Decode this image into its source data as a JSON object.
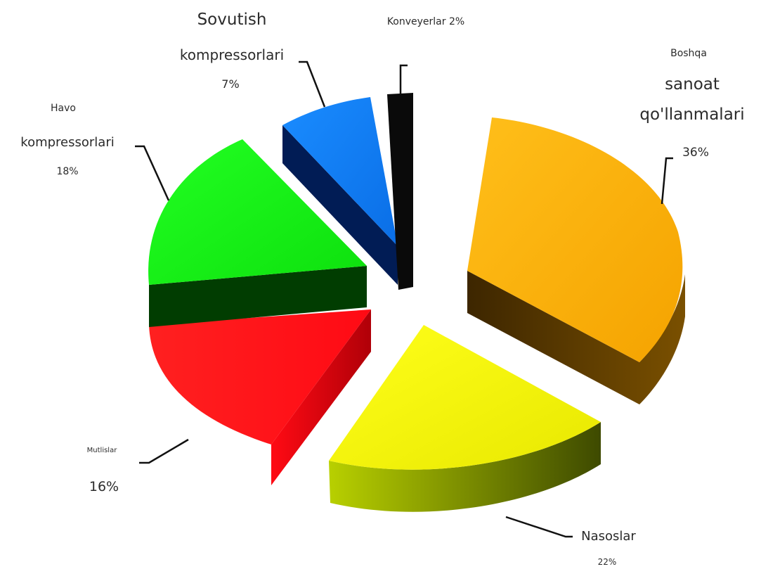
{
  "chart_data": {
    "type": "pie",
    "title": "",
    "style": "3d-exploded",
    "slices": [
      {
        "label_lines": [
          "Boshqa",
          "sanoat",
          "qo'llanmalari",
          "36%"
        ],
        "value": 36,
        "color": "#ffb400",
        "side_color": "#6b4300"
      },
      {
        "label_lines": [
          "Nasoslar",
          "22%"
        ],
        "value": 22,
        "color": "#f2f20d",
        "side_color": "#7a8c00"
      },
      {
        "label_lines": [
          "Mutlislar",
          "16%"
        ],
        "value": 16,
        "color": "#ff0a14",
        "side_color": "#c8000a"
      },
      {
        "label_lines": [
          "Havo",
          "kompressorlari",
          "18%"
        ],
        "value": 18,
        "color": "#11ee11",
        "side_color": "#003c00"
      },
      {
        "label_lines": [
          "Sovutish",
          "kompressorlari",
          "7%"
        ],
        "value": 7,
        "color": "#0a7cf7",
        "side_color": "#00205e"
      },
      {
        "label_lines": [
          "Konveyerlar 2%"
        ],
        "value": 2,
        "color": "#111111",
        "side_color": "#000000"
      }
    ]
  }
}
